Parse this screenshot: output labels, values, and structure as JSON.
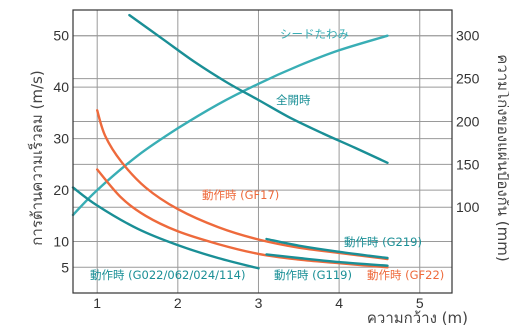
{
  "chart_data": {
    "type": "line",
    "xlabel": "ความกว้าง (m)",
    "ylabel": "การต้านความเร็วลม (m/s)",
    "ylabel_right": "ความโก่งของแผ่นป้องกัน (mm)",
    "xlim": [
      0.7,
      5.4
    ],
    "ylim": [
      0,
      55
    ],
    "ylim_right": [
      0,
      330
    ],
    "x_ticks": [
      "1",
      "2",
      "3",
      "4",
      "5"
    ],
    "y_ticks": [
      "5",
      "10",
      "20",
      "30",
      "40",
      "50"
    ],
    "y_ticks_right": [
      "100",
      "150",
      "200",
      "250",
      "300"
    ],
    "grid": true,
    "colors": {
      "teal": "#1a8f96",
      "teal_light": "#39aeb5",
      "orange": "#ee6a3c"
    },
    "series": [
      {
        "name": "シードたわみ",
        "axis": "right",
        "color": "#39aeb5",
        "x": [
          0.7,
          1.0,
          1.5,
          2.0,
          2.5,
          3.0,
          3.5,
          4.0,
          4.6
        ],
        "y": [
          91,
          120,
          160,
          192,
          220,
          244,
          265,
          283,
          300
        ]
      },
      {
        "name": "全開時",
        "axis": "left",
        "color": "#1a8f96",
        "x": [
          1.4,
          1.8,
          2.2,
          2.6,
          3.0,
          3.4,
          3.8,
          4.2,
          4.6
        ],
        "y": [
          54,
          49.5,
          45,
          41,
          37.5,
          34,
          31,
          28.2,
          25.3
        ]
      },
      {
        "name": "動作時 (GF17)",
        "axis": "left",
        "color": "#ee6a3c",
        "x": [
          1.0,
          1.1,
          1.3,
          1.6,
          2.0,
          2.5,
          3.0,
          3.5,
          4.0,
          4.6
        ],
        "y": [
          35.5,
          30.5,
          25.5,
          20.5,
          16.3,
          12.8,
          10.4,
          8.8,
          7.8,
          6.6
        ]
      },
      {
        "name": "動作時 (GF22)",
        "axis": "left",
        "color": "#ee6a3c",
        "x": [
          1.0,
          1.3,
          1.6,
          2.0,
          2.5,
          3.0,
          3.5,
          4.0,
          4.6
        ],
        "y": [
          24,
          18.5,
          15,
          12,
          9.5,
          7.6,
          6.5,
          5.8,
          5.0
        ]
      },
      {
        "name": "動作時 (G219)",
        "axis": "left",
        "color": "#1a8f96",
        "x": [
          3.1,
          3.5,
          4.0,
          4.6
        ],
        "y": [
          10.5,
          9.2,
          8.0,
          6.8
        ]
      },
      {
        "name": "動作時 (G119)",
        "axis": "left",
        "color": "#1a8f96",
        "x": [
          3.1,
          3.5,
          4.0,
          4.6
        ],
        "y": [
          7.5,
          6.8,
          6.0,
          5.3
        ]
      },
      {
        "name": "動作時 (G022/062/024/114)",
        "axis": "left",
        "color": "#1a8f96",
        "x": [
          0.7,
          1.0,
          1.5,
          2.0,
          2.5,
          3.0
        ],
        "y": [
          20.5,
          17,
          12.5,
          9.3,
          6.8,
          4.8
        ]
      }
    ],
    "annotations": [
      {
        "text": "シードたわみ",
        "color": "#39aeb5"
      },
      {
        "text": "全開時",
        "color": "#1a8f96"
      },
      {
        "text": "動作時 (GF17)",
        "color": "#ee6a3c"
      },
      {
        "text": "動作時 (G219)",
        "color": "#1a8f96"
      },
      {
        "text": "動作時 (G022/062/024/114)",
        "color": "#1a8f96"
      },
      {
        "text": "動作時 (G119)",
        "color": "#1a8f96"
      },
      {
        "text": "動作時 (GF22)",
        "color": "#ee6a3c"
      }
    ]
  }
}
